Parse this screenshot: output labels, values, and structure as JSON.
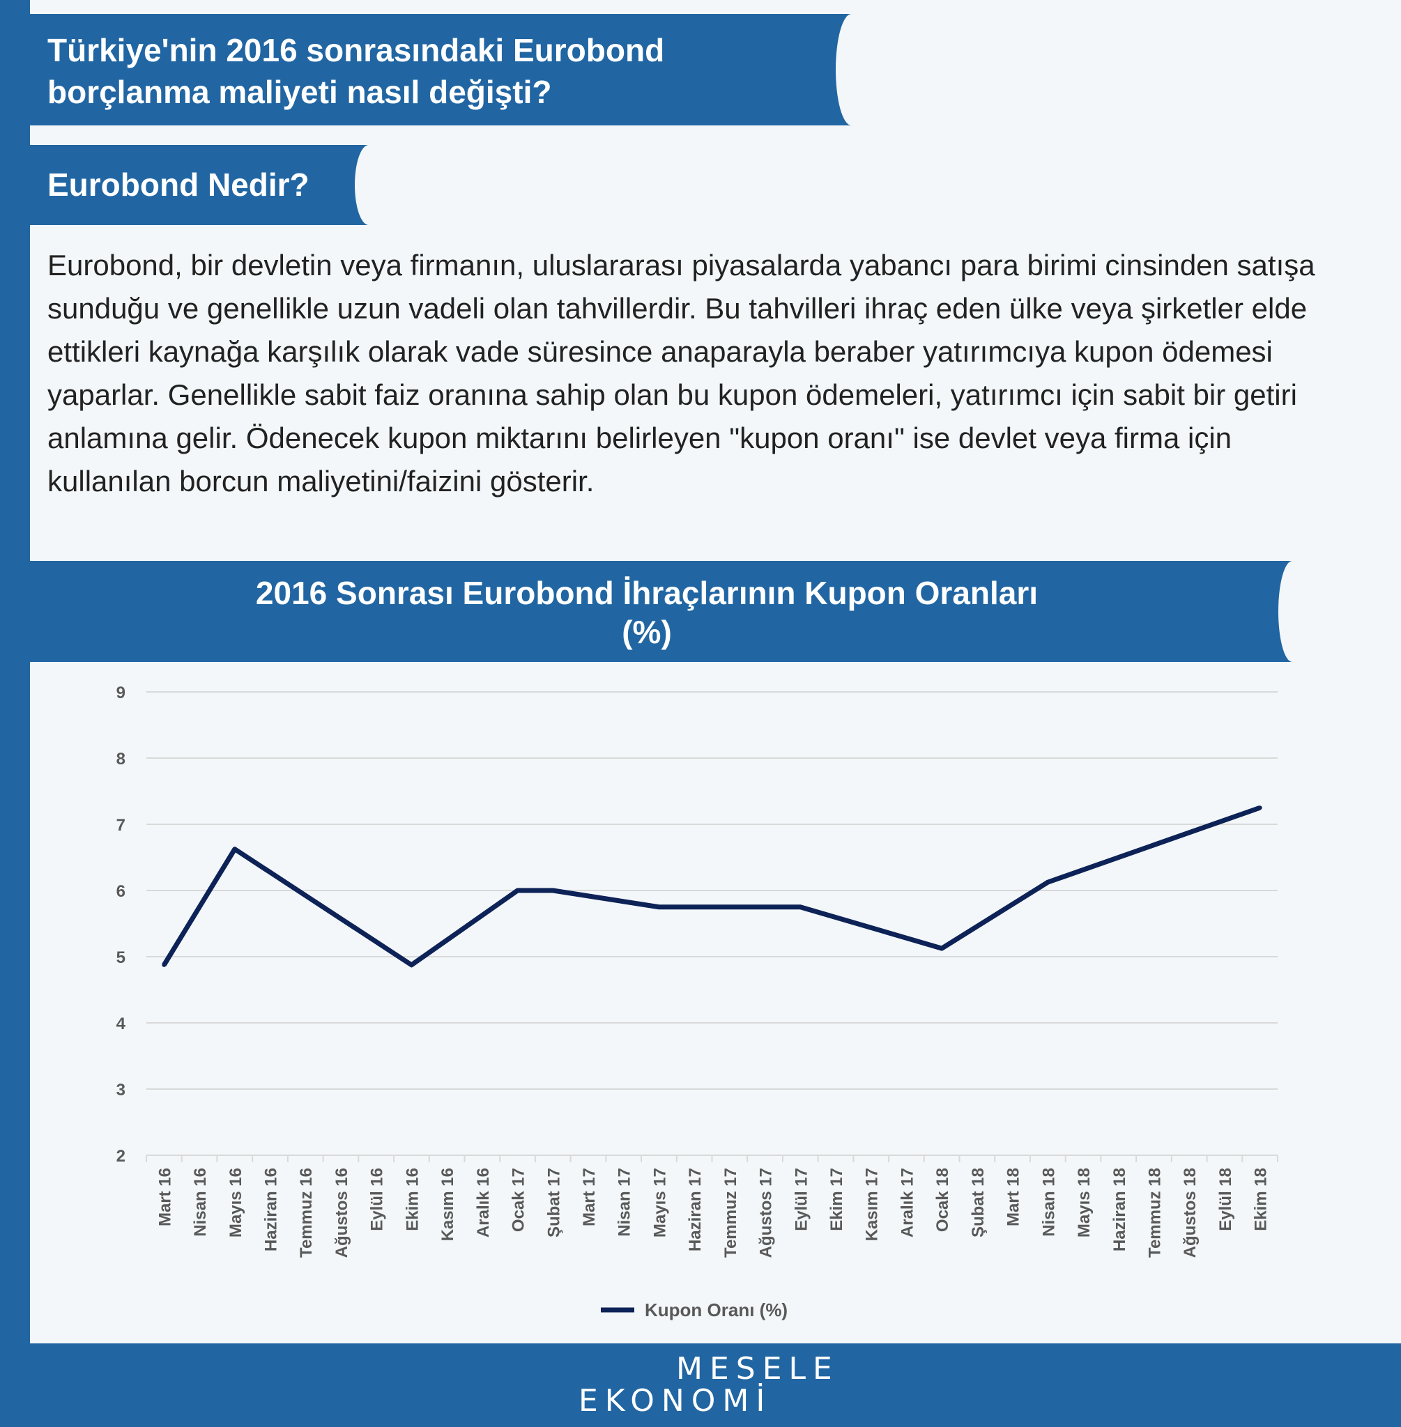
{
  "header": {
    "title_line1": "Türkiye'nin 2016 sonrasındaki Eurobond",
    "title_line2": "borçlanma maliyeti nasıl değişti?"
  },
  "section": {
    "heading": "Eurobond Nedir?",
    "body": "Eurobond, bir devletin veya firmanın, uluslararası piyasalarda yabancı para birimi cinsinden satışa sunduğu ve genellikle uzun vadeli olan tahvillerdir. Bu tahvilleri ihraç eden ülke veya şirketler elde ettikleri kaynağa karşılık olarak vade süresince anaparayla beraber yatırımcıya kupon ödemesi yaparlar. Genellikle sabit faiz oranına sahip olan bu kupon ödemeleri, yatırımcı için sabit bir getiri anlamına gelir. Ödenecek kupon miktarını belirleyen \"kupon oranı\" ise devlet veya firma için kullanılan borcun maliyetini/faizini gösterir."
  },
  "chart_data": {
    "type": "line",
    "title": "2016 Sonrası Eurobond İhraçlarının Kupon Oranları",
    "subtitle": "(%)",
    "categories": [
      "Mart 16",
      "Nisan 16",
      "Mayıs 16",
      "Haziran 16",
      "Temmuz 16",
      "Ağustos 16",
      "Eylül 16",
      "Ekim 16",
      "Kasım 16",
      "Aralık 16",
      "Ocak 17",
      "Şubat 17",
      "Mart 17",
      "Nisan 17",
      "Mayıs 17",
      "Haziran 17",
      "Temmuz 17",
      "Ağustos 17",
      "Eylül 17",
      "Ekim 17",
      "Kasım 17",
      "Aralık 17",
      "Ocak 18",
      "Şubat 18",
      "Mart 18",
      "Nisan 18",
      "Mayıs 18",
      "Haziran 18",
      "Temmuz 18",
      "Ağustos 18",
      "Eylül 18",
      "Ekim 18"
    ],
    "series": [
      {
        "name": "Kupon Oranı (%)",
        "color": "#0d2257",
        "values": [
          4.875,
          null,
          6.625,
          null,
          null,
          null,
          null,
          4.875,
          null,
          null,
          6.0,
          6.0,
          null,
          null,
          5.75,
          null,
          null,
          null,
          5.75,
          null,
          null,
          null,
          5.125,
          null,
          null,
          6.125,
          null,
          null,
          null,
          null,
          null,
          7.25
        ]
      }
    ],
    "ylim": [
      2,
      9
    ],
    "yticks": [
      2,
      3,
      4,
      5,
      6,
      7,
      8,
      9
    ],
    "grid": true,
    "legend": "bottom-center"
  },
  "footer": {
    "logo_top": "MESELE",
    "logo_bottom": "EKONOMİ"
  }
}
